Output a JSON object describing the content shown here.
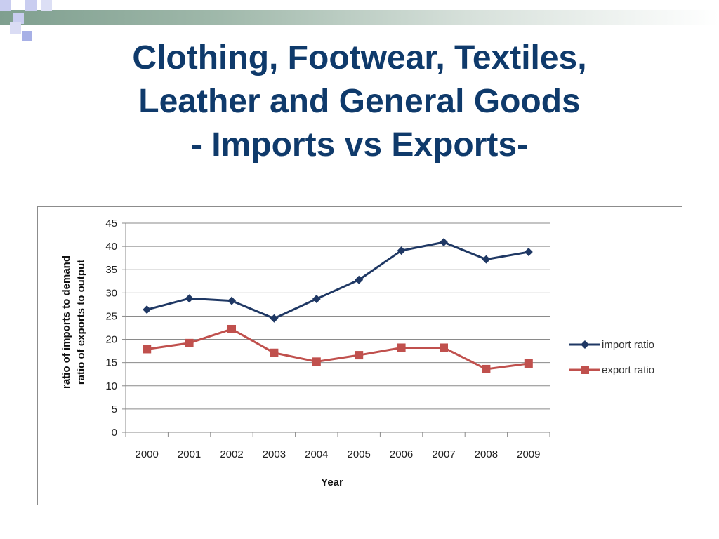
{
  "slide": {
    "title_lines": [
      "Clothing, Footwear, Textiles,",
      "Leather and General Goods",
      "- Imports vs Exports-"
    ],
    "accent_color": "#0f3a6b"
  },
  "chart_data": {
    "type": "line",
    "title": "",
    "xlabel": "Year",
    "ylabel_lines": [
      "ratio of imports to demand",
      "ratio of exports to output"
    ],
    "x": [
      "2000",
      "2001",
      "2002",
      "2003",
      "2004",
      "2005",
      "2006",
      "2007",
      "2008",
      "2009"
    ],
    "ylim": [
      0,
      45
    ],
    "yticks": [
      0,
      5,
      10,
      15,
      20,
      25,
      30,
      35,
      40,
      45
    ],
    "grid": "horizontal",
    "legend_position": "right",
    "series": [
      {
        "name": "import ratio",
        "color": "#1f3864",
        "marker": "diamond",
        "values": [
          26.4,
          28.8,
          28.3,
          24.5,
          28.7,
          32.8,
          39.1,
          40.9,
          37.2,
          38.8
        ]
      },
      {
        "name": "export ratio",
        "color": "#c0504d",
        "marker": "square",
        "values": [
          17.9,
          19.2,
          22.2,
          17.1,
          15.2,
          16.6,
          18.2,
          18.2,
          13.6,
          14.8
        ]
      }
    ]
  }
}
